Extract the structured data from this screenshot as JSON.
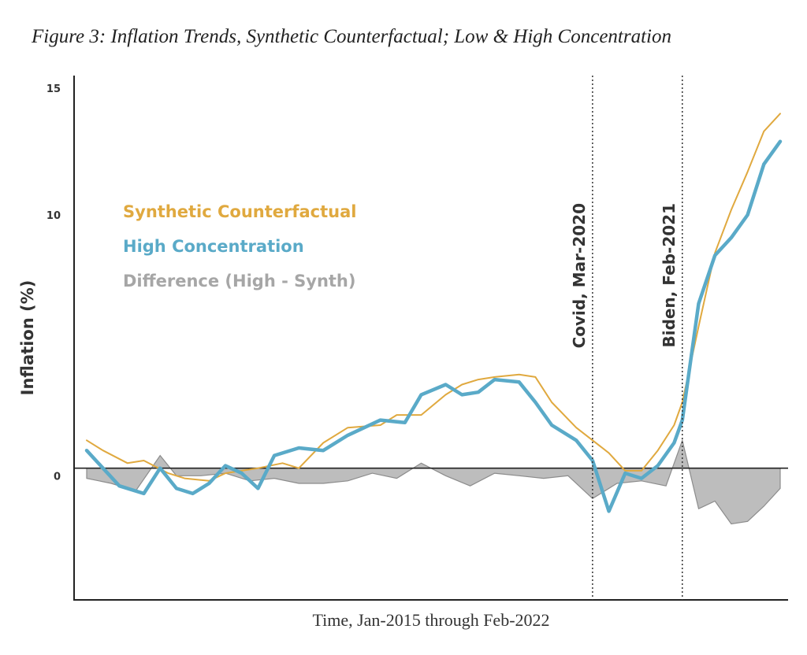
{
  "chart_data": {
    "type": "line",
    "title": "Figure 3: Inflation Trends, Synthetic Counterfactual; Low & High Concentration",
    "xlabel": "Time, Jan-2015 through Feb-2022",
    "ylabel": "Inflation (%)",
    "ylim": [
      -5.2,
      15.5
    ],
    "yticks": [
      0,
      10,
      15
    ],
    "yticklabels": [
      "0",
      "10",
      "15"
    ],
    "x_start": "2015-01",
    "x_end": "2022-02",
    "grid": false,
    "zero_line": true,
    "legend_position": "upper-left",
    "colors": {
      "synth": "#e0a93f",
      "high": "#5aaac8",
      "diff_fill": "#bdbdbd",
      "diff_stroke": "#8c8c8c",
      "axis": "#222222"
    },
    "series": [
      {
        "name": "Synthetic Counterfactual",
        "x": [
          "2015-01",
          "2015-03",
          "2015-06",
          "2015-08",
          "2015-11",
          "2016-01",
          "2016-04",
          "2016-06",
          "2016-08",
          "2016-10",
          "2017-01",
          "2017-03",
          "2017-06",
          "2017-09",
          "2018-01",
          "2018-03",
          "2018-06",
          "2018-09",
          "2018-11",
          "2019-01",
          "2019-03",
          "2019-06",
          "2019-08",
          "2019-10",
          "2020-01",
          "2020-03",
          "2020-05",
          "2020-07",
          "2020-09",
          "2020-11",
          "2021-01",
          "2021-02",
          "2021-04",
          "2021-06",
          "2021-08",
          "2021-10",
          "2021-12",
          "2022-02"
        ],
        "values": [
          1.1,
          0.7,
          0.2,
          0.3,
          -0.2,
          -0.4,
          -0.5,
          -0.2,
          -0.1,
          0.0,
          0.2,
          0.0,
          1.0,
          1.6,
          1.7,
          2.1,
          2.1,
          2.9,
          3.3,
          3.5,
          3.6,
          3.7,
          3.6,
          2.6,
          1.6,
          1.1,
          0.6,
          -0.1,
          -0.1,
          0.7,
          1.7,
          2.6,
          5.6,
          8.5,
          10.2,
          11.7,
          13.3,
          14.0
        ]
      },
      {
        "name": "High Concentration",
        "x": [
          "2015-01",
          "2015-03",
          "2015-05",
          "2015-08",
          "2015-10",
          "2015-12",
          "2016-02",
          "2016-04",
          "2016-06",
          "2016-08",
          "2016-10",
          "2016-12",
          "2017-03",
          "2017-06",
          "2017-09",
          "2018-01",
          "2018-04",
          "2018-06",
          "2018-09",
          "2018-11",
          "2019-01",
          "2019-03",
          "2019-06",
          "2019-08",
          "2019-10",
          "2020-01",
          "2020-03",
          "2020-05",
          "2020-07",
          "2020-09",
          "2020-11",
          "2021-01",
          "2021-02",
          "2021-04",
          "2021-06",
          "2021-08",
          "2021-10",
          "2021-12",
          "2022-02"
        ],
        "values": [
          0.7,
          0.0,
          -0.7,
          -1.0,
          0.0,
          -0.8,
          -1.0,
          -0.6,
          0.1,
          -0.2,
          -0.8,
          0.5,
          0.8,
          0.7,
          1.3,
          1.9,
          1.8,
          2.9,
          3.3,
          2.9,
          3.0,
          3.5,
          3.4,
          2.6,
          1.7,
          1.1,
          0.3,
          -1.7,
          -0.2,
          -0.4,
          0.1,
          1.0,
          1.9,
          6.5,
          8.4,
          9.1,
          10.0,
          12.0,
          12.9
        ]
      },
      {
        "name": "Difference (High - Synth)",
        "x": [
          "2015-01",
          "2015-04",
          "2015-07",
          "2015-10",
          "2015-12",
          "2016-03",
          "2016-06",
          "2016-09",
          "2016-12",
          "2017-03",
          "2017-06",
          "2017-09",
          "2017-12",
          "2018-03",
          "2018-06",
          "2018-09",
          "2018-12",
          "2019-03",
          "2019-06",
          "2019-09",
          "2019-12",
          "2020-03",
          "2020-06",
          "2020-09",
          "2020-12",
          "2021-02",
          "2021-04",
          "2021-06",
          "2021-08",
          "2021-10",
          "2021-12",
          "2022-02"
        ],
        "values": [
          -0.4,
          -0.6,
          -0.9,
          0.5,
          -0.3,
          -0.3,
          -0.2,
          -0.5,
          -0.4,
          -0.6,
          -0.6,
          -0.5,
          -0.2,
          -0.4,
          0.2,
          -0.3,
          -0.7,
          -0.2,
          -0.3,
          -0.4,
          -0.3,
          -1.2,
          -0.6,
          -0.5,
          -0.7,
          1.1,
          -1.6,
          -1.3,
          -2.2,
          -2.1,
          -1.5,
          -0.8
        ]
      }
    ],
    "annotations": [
      {
        "x": "2020-03",
        "label": "Covid, Mar-2020",
        "style": "dotted-vertical-line"
      },
      {
        "x": "2021-02",
        "label": "Biden, Feb-2021",
        "style": "dotted-vertical-line"
      }
    ]
  }
}
